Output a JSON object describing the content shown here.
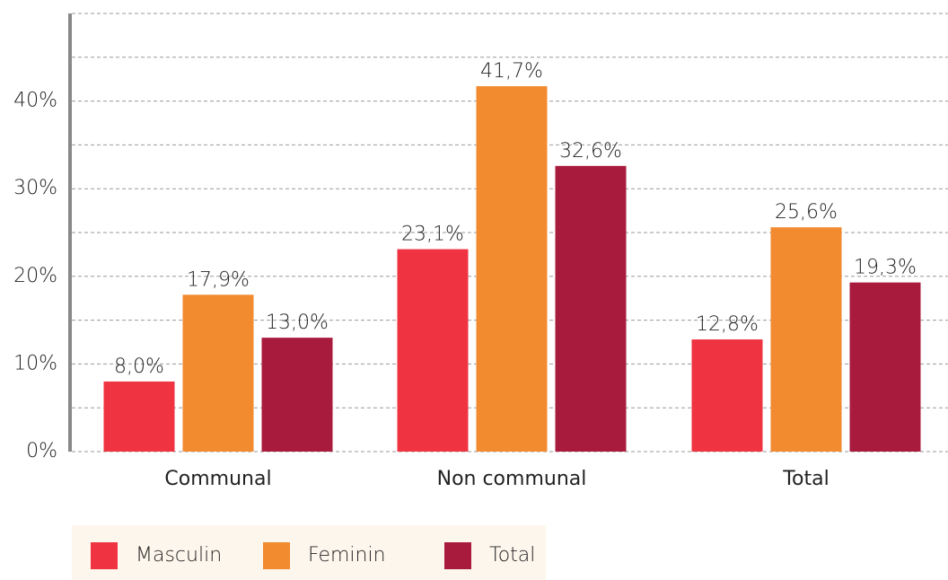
{
  "chart_data": {
    "type": "bar",
    "categories": [
      "Communal",
      "Non communal",
      "Total"
    ],
    "series": [
      {
        "name": "Masculin",
        "color": "#ef3340",
        "values": [
          8.0,
          23.1,
          12.8
        ],
        "value_labels": [
          "8,0%",
          "23,1%",
          "12,8%"
        ]
      },
      {
        "name": "Feminin",
        "color": "#f28a30",
        "values": [
          17.9,
          41.7,
          25.6
        ],
        "value_labels": [
          "17,9%",
          "41,7%",
          "25,6%"
        ]
      },
      {
        "name": "Total",
        "color": "#a91b3c",
        "values": [
          13.0,
          32.6,
          19.3
        ],
        "value_labels": [
          "13,0%",
          "32,6%",
          "19,3%"
        ]
      }
    ],
    "ylim": [
      0,
      50
    ],
    "yticks": [
      {
        "value": 0,
        "label": "0%"
      },
      {
        "value": 10,
        "label": "10%"
      },
      {
        "value": 20,
        "label": "20%"
      },
      {
        "value": 30,
        "label": "30%"
      },
      {
        "value": 40,
        "label": "40%"
      }
    ],
    "minor_yticks": [
      5,
      15,
      25,
      35,
      45,
      50
    ],
    "grid": true,
    "legend": "bottom-left"
  }
}
